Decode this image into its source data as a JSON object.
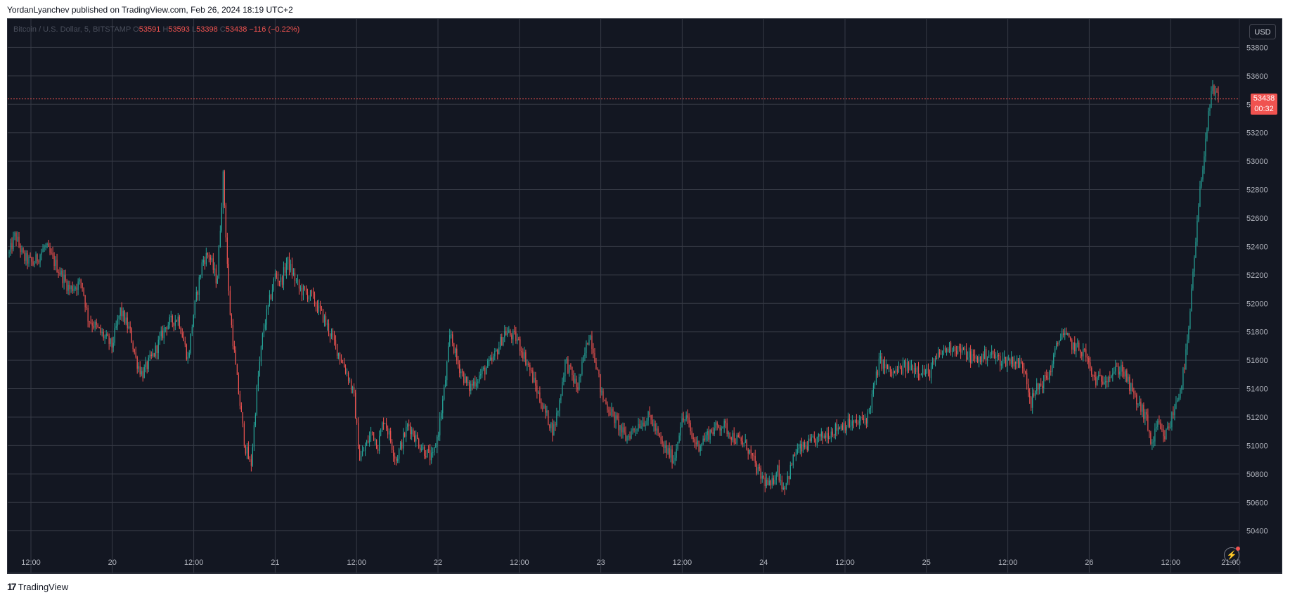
{
  "header": {
    "publisher_text": "YordanLyanchev published on TradingView.com, Feb 26, 2024 18:19 UTC+2"
  },
  "legend": {
    "symbol": "Bitcoin / U.S. Dollar, 5, BITSTAMP",
    "open_label": "O",
    "open": "53591",
    "high_label": "H",
    "high": "53593",
    "low_label": "L",
    "low": "53398",
    "close_label": "C",
    "close": "53438",
    "change": "−116 (−0.22%)"
  },
  "currency_button": "USD",
  "price_tag": {
    "price": "53438",
    "countdown": "00:32",
    "color": "#f05350"
  },
  "footer": {
    "brand": "TradingView",
    "logo_icon": "tradingview-logo-icon"
  },
  "colors": {
    "background": "#131722",
    "grid": "#363a45",
    "up": "#26a69a",
    "down": "#ef5350",
    "axis_text": "#b2b5be"
  },
  "chart_data": {
    "type": "candlestick",
    "symbol": "Bitcoin / U.S. Dollar",
    "interval": "5",
    "exchange": "BITSTAMP",
    "ylim": [
      50250,
      54000
    ],
    "y_ticks": [
      50400,
      50600,
      50800,
      51000,
      51200,
      51400,
      51600,
      51800,
      52000,
      52200,
      52400,
      52600,
      52800,
      53000,
      53200,
      53400,
      53600,
      53800
    ],
    "x_ticks": [
      "12:00",
      "20",
      "12:00",
      "21",
      "12:00",
      "22",
      "12:00",
      "23",
      "12:00",
      "24",
      "12:00",
      "25",
      "12:00",
      "26",
      "12:00",
      "21:00"
    ],
    "last_price": 53438,
    "grid": true,
    "price_path": [
      [
        0,
        52350
      ],
      [
        0.005,
        52480
      ],
      [
        0.012,
        52320
      ],
      [
        0.02,
        52280
      ],
      [
        0.03,
        52400
      ],
      [
        0.04,
        52250
      ],
      [
        0.05,
        52100
      ],
      [
        0.06,
        52150
      ],
      [
        0.065,
        51900
      ],
      [
        0.075,
        51800
      ],
      [
        0.085,
        51700
      ],
      [
        0.092,
        51950
      ],
      [
        0.1,
        51800
      ],
      [
        0.105,
        51600
      ],
      [
        0.11,
        51500
      ],
      [
        0.12,
        51650
      ],
      [
        0.13,
        51850
      ],
      [
        0.14,
        51900
      ],
      [
        0.148,
        51600
      ],
      [
        0.152,
        51900
      ],
      [
        0.16,
        52300
      ],
      [
        0.165,
        52350
      ],
      [
        0.172,
        52150
      ],
      [
        0.177,
        52900
      ],
      [
        0.182,
        52000
      ],
      [
        0.188,
        51500
      ],
      [
        0.195,
        51000
      ],
      [
        0.2,
        50850
      ],
      [
        0.205,
        51400
      ],
      [
        0.21,
        51800
      ],
      [
        0.215,
        52000
      ],
      [
        0.22,
        52200
      ],
      [
        0.225,
        52150
      ],
      [
        0.23,
        52300
      ],
      [
        0.235,
        52200
      ],
      [
        0.24,
        52100
      ],
      [
        0.25,
        52050
      ],
      [
        0.26,
        51900
      ],
      [
        0.27,
        51700
      ],
      [
        0.28,
        51500
      ],
      [
        0.285,
        51350
      ],
      [
        0.29,
        50900
      ],
      [
        0.3,
        51100
      ],
      [
        0.305,
        51000
      ],
      [
        0.31,
        51200
      ],
      [
        0.32,
        50900
      ],
      [
        0.33,
        51150
      ],
      [
        0.34,
        51000
      ],
      [
        0.35,
        50900
      ],
      [
        0.355,
        51100
      ],
      [
        0.36,
        51400
      ],
      [
        0.365,
        51800
      ],
      [
        0.37,
        51600
      ],
      [
        0.38,
        51400
      ],
      [
        0.39,
        51500
      ],
      [
        0.4,
        51600
      ],
      [
        0.41,
        51800
      ],
      [
        0.42,
        51750
      ],
      [
        0.43,
        51550
      ],
      [
        0.44,
        51300
      ],
      [
        0.45,
        51100
      ],
      [
        0.455,
        51300
      ],
      [
        0.46,
        51600
      ],
      [
        0.465,
        51500
      ],
      [
        0.47,
        51400
      ],
      [
        0.475,
        51600
      ],
      [
        0.48,
        51800
      ],
      [
        0.485,
        51600
      ],
      [
        0.49,
        51350
      ],
      [
        0.5,
        51200
      ],
      [
        0.51,
        51050
      ],
      [
        0.52,
        51150
      ],
      [
        0.53,
        51200
      ],
      [
        0.54,
        51000
      ],
      [
        0.55,
        50900
      ],
      [
        0.555,
        51150
      ],
      [
        0.56,
        51200
      ],
      [
        0.565,
        51050
      ],
      [
        0.57,
        51000
      ],
      [
        0.58,
        51100
      ],
      [
        0.59,
        51150
      ],
      [
        0.6,
        51050
      ],
      [
        0.61,
        51000
      ],
      [
        0.62,
        50800
      ],
      [
        0.63,
        50700
      ],
      [
        0.635,
        50850
      ],
      [
        0.64,
        50700
      ],
      [
        0.645,
        50800
      ],
      [
        0.65,
        50950
      ],
      [
        0.66,
        51000
      ],
      [
        0.67,
        51050
      ],
      [
        0.68,
        51100
      ],
      [
        0.69,
        51150
      ],
      [
        0.7,
        51150
      ],
      [
        0.71,
        51200
      ],
      [
        0.715,
        51400
      ],
      [
        0.72,
        51600
      ],
      [
        0.73,
        51500
      ],
      [
        0.74,
        51550
      ],
      [
        0.75,
        51550
      ],
      [
        0.76,
        51500
      ],
      [
        0.77,
        51650
      ],
      [
        0.78,
        51700
      ],
      [
        0.79,
        51650
      ],
      [
        0.8,
        51600
      ],
      [
        0.81,
        51650
      ],
      [
        0.82,
        51600
      ],
      [
        0.83,
        51600
      ],
      [
        0.84,
        51550
      ],
      [
        0.845,
        51300
      ],
      [
        0.85,
        51400
      ],
      [
        0.86,
        51500
      ],
      [
        0.865,
        51650
      ],
      [
        0.87,
        51800
      ],
      [
        0.875,
        51750
      ],
      [
        0.88,
        51700
      ],
      [
        0.89,
        51650
      ],
      [
        0.895,
        51500
      ],
      [
        0.9,
        51450
      ],
      [
        0.91,
        51500
      ],
      [
        0.92,
        51550
      ],
      [
        0.925,
        51450
      ],
      [
        0.93,
        51350
      ],
      [
        0.94,
        51200
      ],
      [
        0.945,
        51000
      ],
      [
        0.95,
        51150
      ],
      [
        0.955,
        51050
      ],
      [
        0.96,
        51150
      ],
      [
        0.965,
        51300
      ],
      [
        0.97,
        51450
      ],
      [
        0.975,
        51750
      ],
      [
        0.98,
        52300
      ],
      [
        0.985,
        52800
      ],
      [
        0.99,
        53200
      ],
      [
        0.995,
        53500
      ],
      [
        1.0,
        53438
      ]
    ]
  }
}
